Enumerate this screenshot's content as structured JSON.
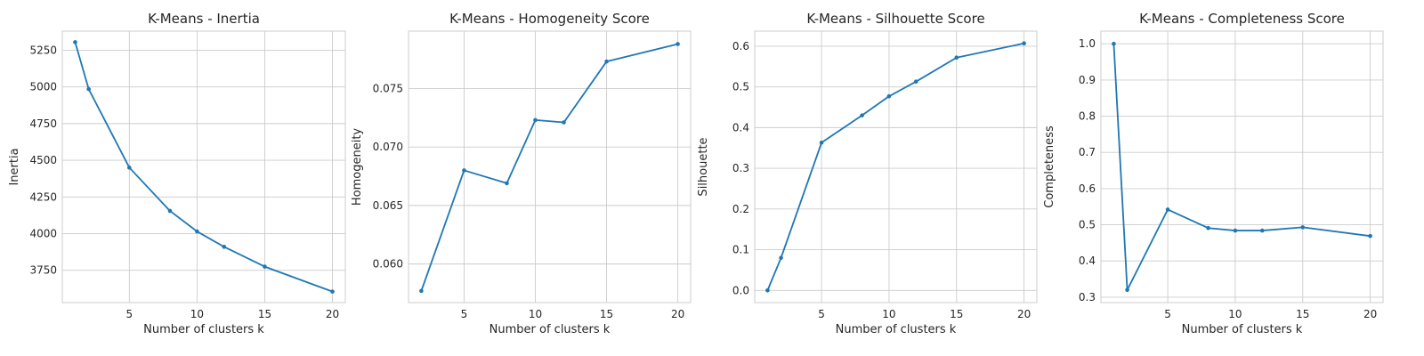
{
  "chart_data": [
    {
      "type": "line",
      "title": "K-Means - Inertia",
      "xlabel": "Number of clusters k",
      "ylabel": "Inertia",
      "x": [
        1,
        2,
        5,
        8,
        10,
        12,
        15,
        20
      ],
      "values": [
        5305,
        4985,
        4450,
        4155,
        4015,
        3910,
        3775,
        3605
      ],
      "xlim": [
        0.05,
        20.95
      ],
      "ylim": [
        3530,
        5380
      ],
      "xticks": [
        5,
        10,
        15,
        20
      ],
      "yticks": [
        3750,
        4000,
        4250,
        4500,
        4750,
        5000,
        5250
      ],
      "ytick_labels": [
        "3750",
        "4000",
        "4250",
        "4500",
        "4750",
        "5000",
        "5250"
      ],
      "grid": true,
      "color": "#1f77b4"
    },
    {
      "type": "line",
      "title": "K-Means - Homogeneity Score",
      "xlabel": "Number of clusters k",
      "ylabel": "Homogeneity",
      "x": [
        2,
        5,
        8,
        10,
        12,
        15,
        20
      ],
      "values": [
        0.0577,
        0.068,
        0.0669,
        0.0723,
        0.0721,
        0.0773,
        0.0788
      ],
      "xlim": [
        1.1,
        20.9
      ],
      "ylim": [
        0.0567,
        0.0799
      ],
      "xticks": [
        5,
        10,
        15,
        20
      ],
      "yticks": [
        0.06,
        0.065,
        0.07,
        0.075
      ],
      "ytick_labels": [
        "0.060",
        "0.065",
        "0.070",
        "0.075"
      ],
      "grid": true,
      "color": "#1f77b4"
    },
    {
      "type": "line",
      "title": "K-Means - Silhouette Score",
      "xlabel": "Number of clusters k",
      "ylabel": "Silhouette",
      "x": [
        1,
        2,
        5,
        8,
        10,
        12,
        15,
        20
      ],
      "values": [
        0.0,
        0.08,
        0.363,
        0.43,
        0.477,
        0.513,
        0.572,
        0.607
      ],
      "xlim": [
        0.05,
        20.95
      ],
      "ylim": [
        -0.03,
        0.637
      ],
      "xticks": [
        5,
        10,
        15,
        20
      ],
      "yticks": [
        0.0,
        0.1,
        0.2,
        0.3,
        0.4,
        0.5,
        0.6
      ],
      "ytick_labels": [
        "0.0",
        "0.1",
        "0.2",
        "0.3",
        "0.4",
        "0.5",
        "0.6"
      ],
      "grid": true,
      "color": "#1f77b4"
    },
    {
      "type": "line",
      "title": "K-Means - Completeness Score",
      "xlabel": "Number of clusters k",
      "ylabel": "Completeness",
      "x": [
        1,
        2,
        5,
        8,
        10,
        12,
        15,
        20
      ],
      "values": [
        1.0,
        0.32,
        0.542,
        0.491,
        0.484,
        0.484,
        0.493,
        0.469
      ],
      "xlim": [
        0.05,
        20.95
      ],
      "ylim": [
        0.285,
        1.035
      ],
      "xticks": [
        5,
        10,
        15,
        20
      ],
      "yticks": [
        0.3,
        0.4,
        0.5,
        0.6,
        0.7,
        0.8,
        0.9,
        1.0
      ],
      "ytick_labels": [
        "0.3",
        "0.4",
        "0.5",
        "0.6",
        "0.7",
        "0.8",
        "0.9",
        "1.0"
      ],
      "grid": true,
      "color": "#1f77b4"
    }
  ]
}
